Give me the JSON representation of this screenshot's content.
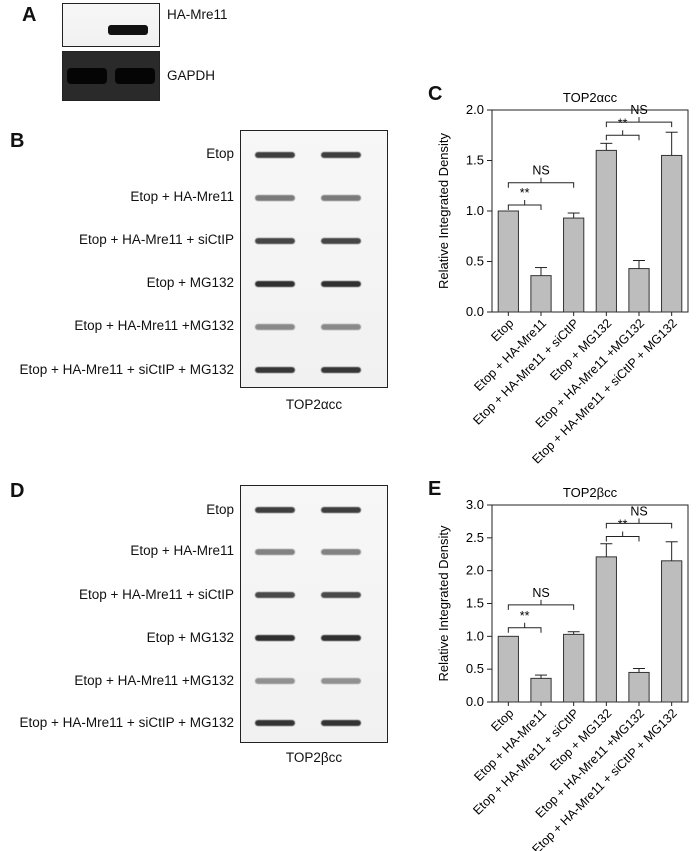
{
  "panels": {
    "A": "A",
    "B": "B",
    "C": "C",
    "D": "D",
    "E": "E"
  },
  "panel_a": {
    "labels": [
      "HA-Mre11",
      "GAPDH"
    ]
  },
  "conditions": [
    "Etop",
    "Etop + HA-Mre11",
    "Etop + HA-Mre11 + siCtIP",
    "Etop + MG132",
    "Etop + HA-Mre11 +MG132",
    "Etop + HA-Mre11 + siCtIP + MG132"
  ],
  "blot_b": {
    "caption": "TOP2αcc"
  },
  "blot_d": {
    "caption": "TOP2βcc"
  },
  "chart_data": [
    {
      "type": "bar",
      "title": "TOP2αcc",
      "ylabel": "Relative Integrated Density",
      "categories": [
        "Etop",
        "Etop + HA-Mre11",
        "Etop + HA-Mre11 + siCtIP",
        "Etop + MG132",
        "Etop + HA-Mre11 +MG132",
        "Etop + HA-Mre11 + siCtIP + MG132"
      ],
      "values": [
        1.0,
        0.36,
        0.93,
        1.6,
        0.43,
        1.55
      ],
      "errors": [
        0,
        0.08,
        0.05,
        0.07,
        0.08,
        0.23
      ],
      "ylim": [
        0,
        2.0
      ],
      "yticks": [
        "0.0",
        "0.5",
        "1.0",
        "1.5",
        "2.0"
      ],
      "annotations": [
        {
          "from": 0,
          "to": 1,
          "label": "**",
          "level": 1.06
        },
        {
          "from": 0,
          "to": 2,
          "label": "NS",
          "level": 1.28
        },
        {
          "from": 3,
          "to": 4,
          "label": "**",
          "level": 1.75
        },
        {
          "from": 3,
          "to": 5,
          "label": "NS",
          "level": 1.88
        }
      ]
    },
    {
      "type": "bar",
      "title": "TOP2βcc",
      "ylabel": "Relative Integrated Density",
      "categories": [
        "Etop",
        "Etop + HA-Mre11",
        "Etop + HA-Mre11 + siCtIP",
        "Etop + MG132",
        "Etop + HA-Mre11 +MG132",
        "Etop + HA-Mre11 + siCtIP + MG132"
      ],
      "values": [
        1.0,
        0.36,
        1.03,
        2.21,
        0.45,
        2.15
      ],
      "errors": [
        0,
        0.05,
        0.04,
        0.2,
        0.06,
        0.29
      ],
      "ylim": [
        0,
        3.0
      ],
      "yticks": [
        "0.0",
        "0.5",
        "1.0",
        "1.5",
        "2.0",
        "2.5",
        "3.0"
      ],
      "annotations": [
        {
          "from": 0,
          "to": 1,
          "label": "**",
          "level": 1.13
        },
        {
          "from": 0,
          "to": 2,
          "label": "NS",
          "level": 1.48
        },
        {
          "from": 3,
          "to": 4,
          "label": "**",
          "level": 2.52
        },
        {
          "from": 3,
          "to": 5,
          "label": "NS",
          "level": 2.72
        }
      ]
    }
  ]
}
